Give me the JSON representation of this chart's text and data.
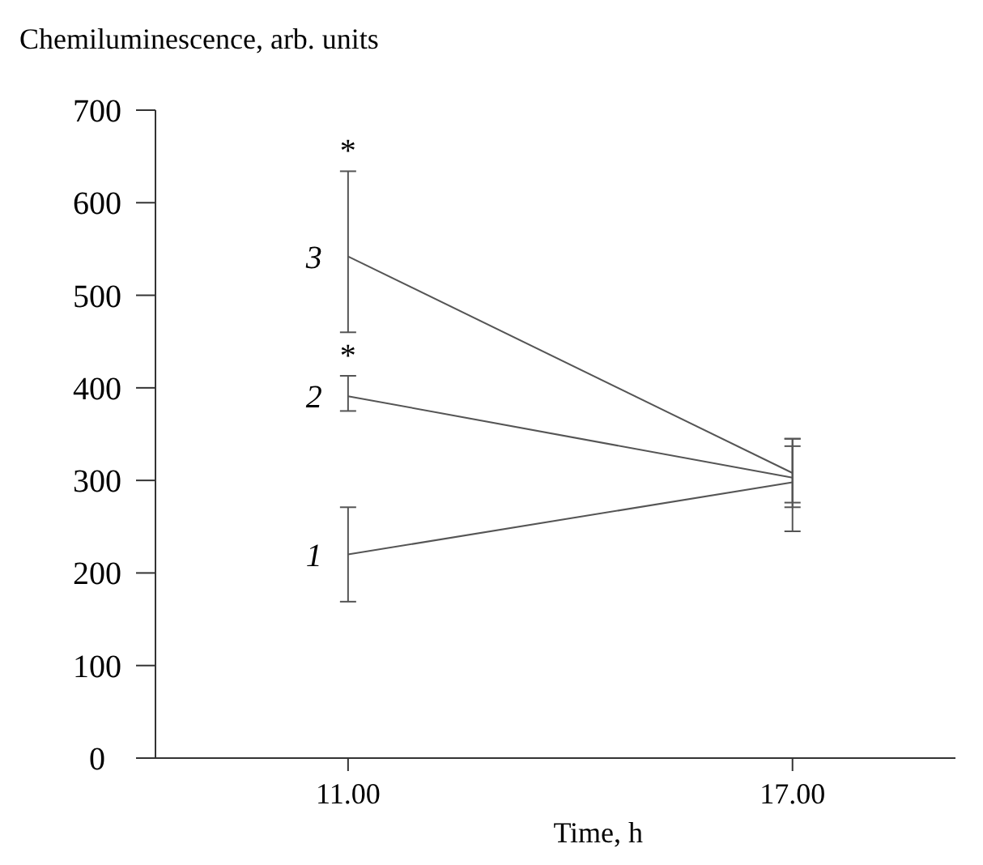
{
  "chart_data": {
    "type": "line",
    "ylabel": "Chemiluminescence, arb. units",
    "xlabel": "Time, h",
    "x": [
      11,
      17
    ],
    "xlim": [
      8.4,
      19.2
    ],
    "xticks": [
      {
        "value": 11,
        "label": "11.00"
      },
      {
        "value": 17,
        "label": "17.00"
      }
    ],
    "ylim": [
      0,
      700
    ],
    "yticks": [
      0,
      100,
      200,
      300,
      400,
      500,
      600,
      700
    ],
    "series": [
      {
        "name": "1",
        "color": "#555555",
        "values": [
          220,
          298
        ],
        "errors": [
          [
            169,
            271
          ],
          [
            245,
            345
          ]
        ]
      },
      {
        "name": "2",
        "color": "#555555",
        "values": [
          391,
          303
        ],
        "errors": [
          [
            375,
            413
          ],
          [
            276,
            337
          ]
        ]
      },
      {
        "name": "3",
        "color": "#555555",
        "values": [
          542,
          308
        ],
        "errors": [
          [
            460,
            634
          ],
          [
            271,
            345
          ]
        ]
      }
    ],
    "annotations": [
      {
        "text": "*",
        "x": 11,
        "y": 634
      },
      {
        "text": "*",
        "x": 11,
        "y": 413
      }
    ],
    "marker": "none",
    "line_style": "solid"
  }
}
